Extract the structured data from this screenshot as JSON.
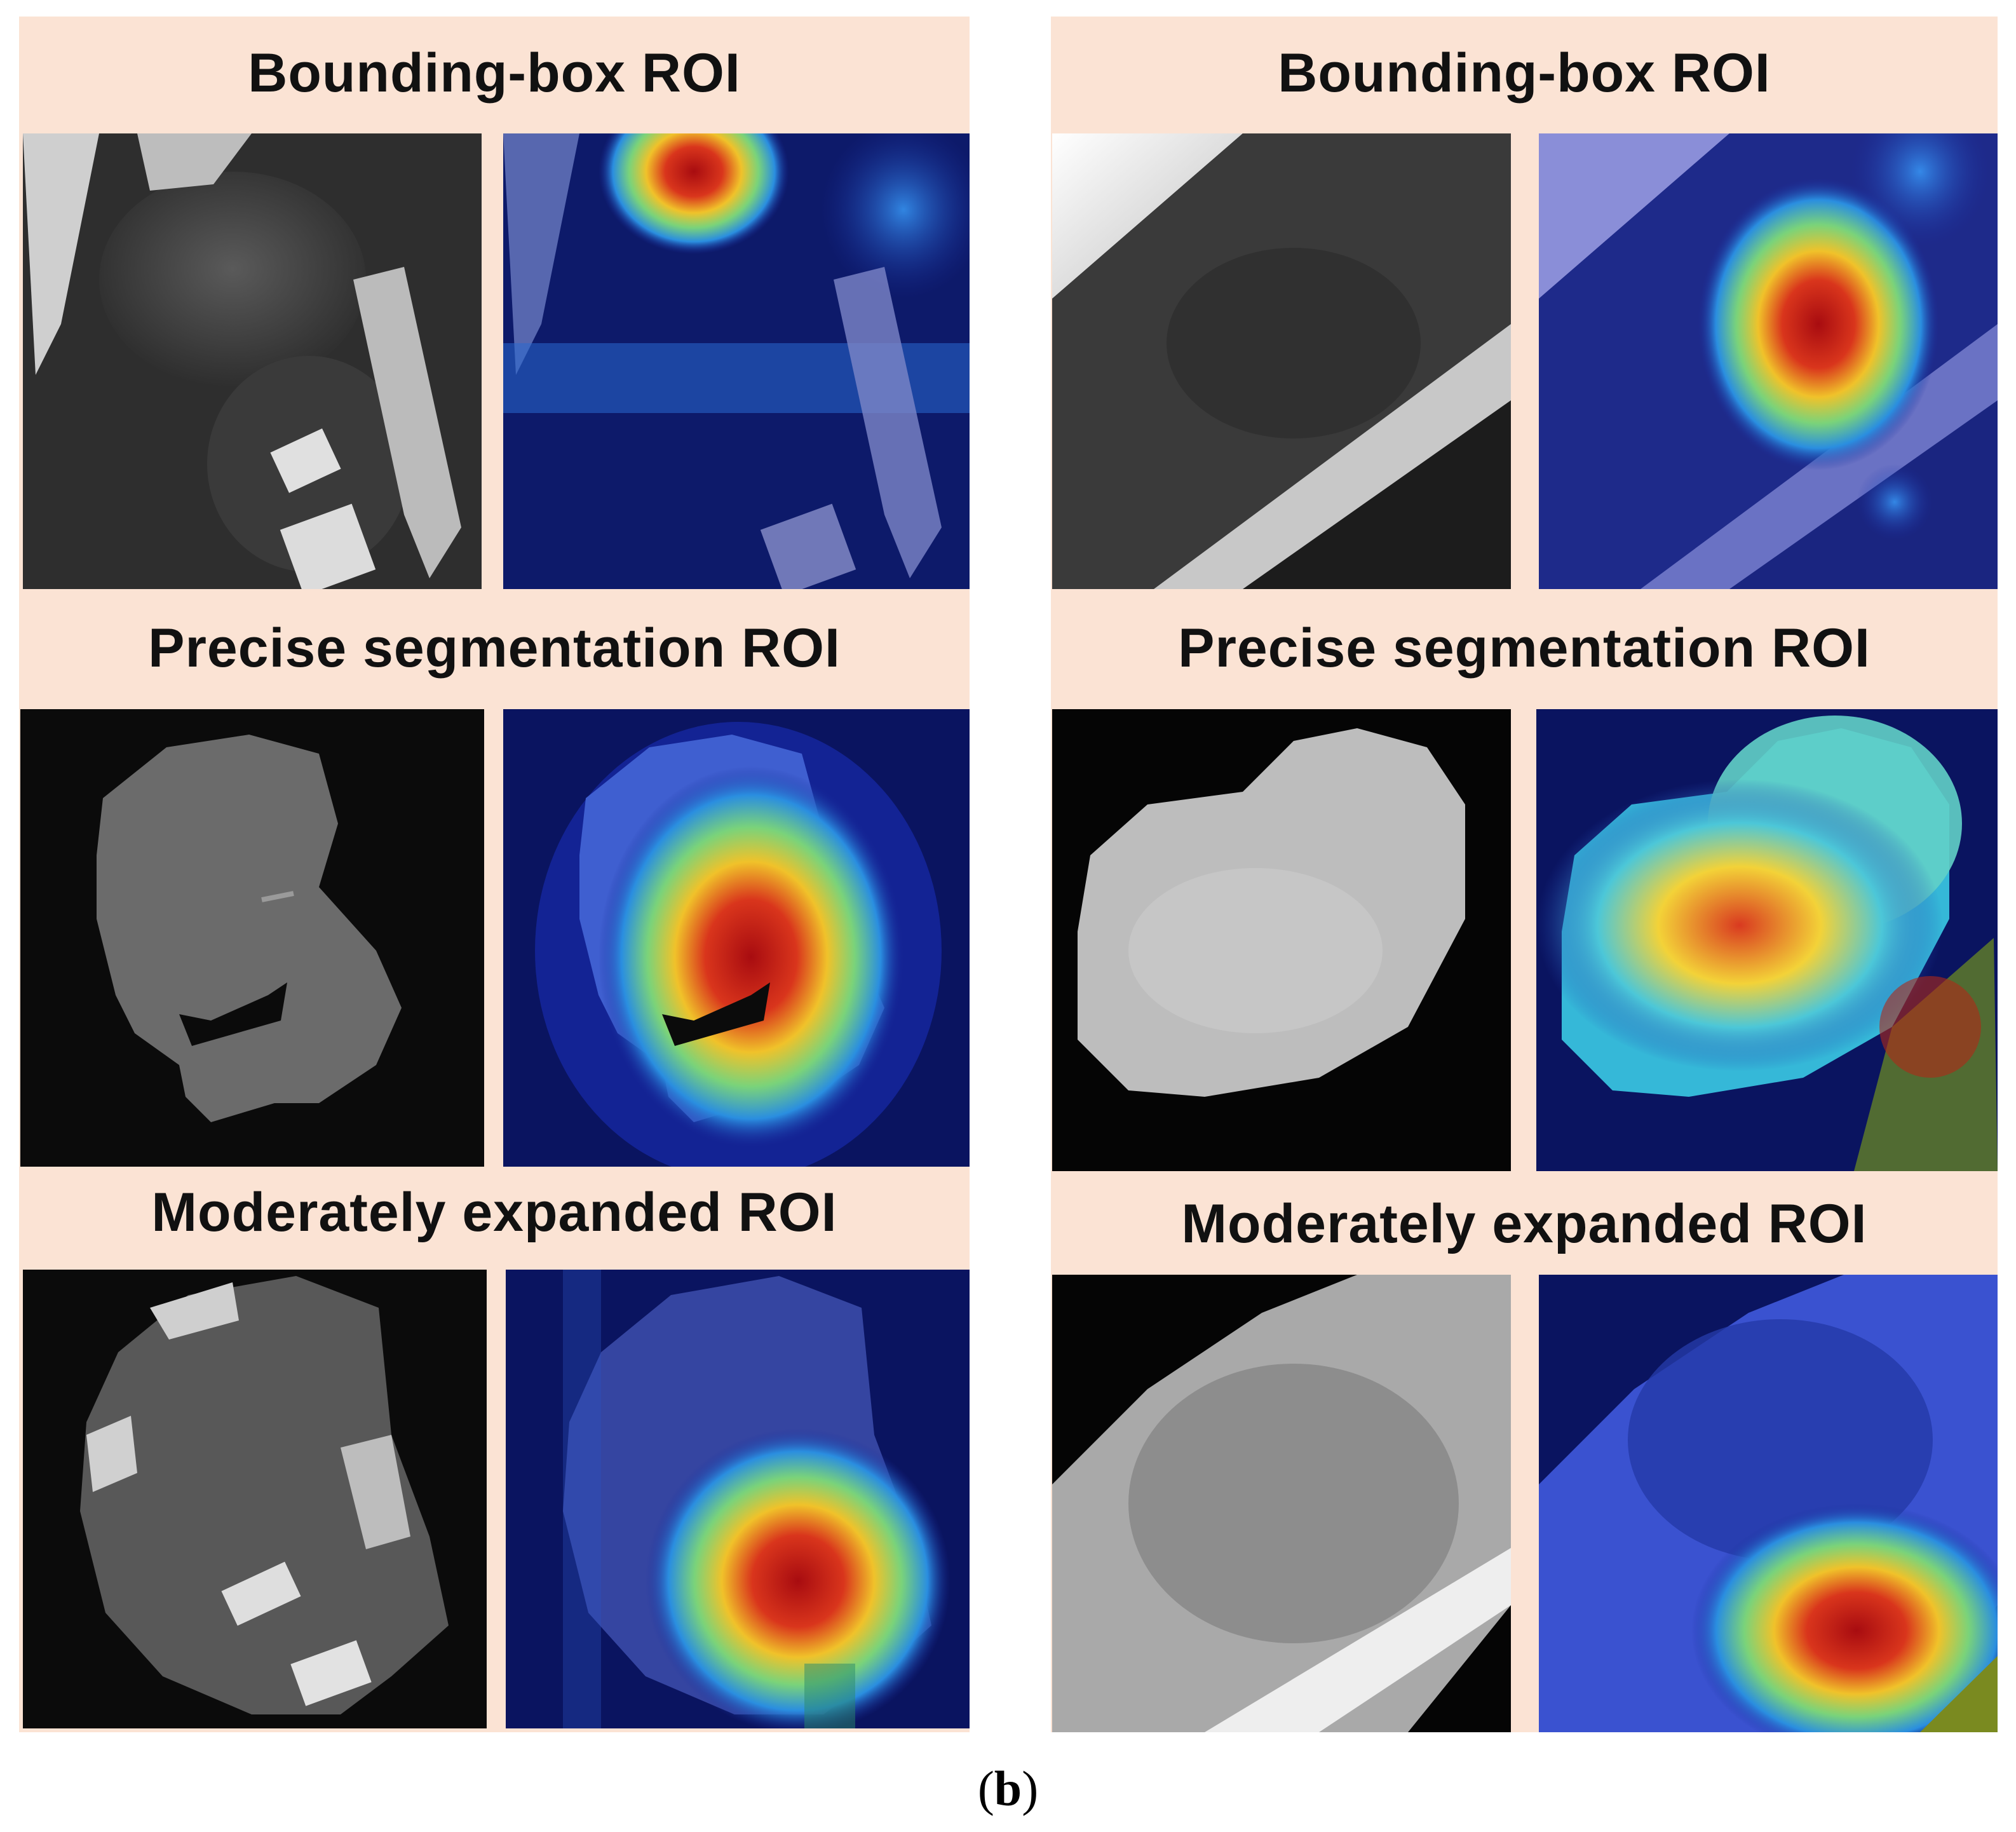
{
  "columns": [
    {
      "rows": [
        {
          "title": "Bounding-box ROI"
        },
        {
          "title": "Precise segmentation ROI"
        },
        {
          "title": "Moderately expanded ROI"
        }
      ]
    },
    {
      "rows": [
        {
          "title": "Bounding-box ROI"
        },
        {
          "title": "Precise segmentation ROI"
        },
        {
          "title": "Moderately expanded ROI"
        }
      ]
    }
  ],
  "caption": {
    "open": "(",
    "letter": "b",
    "close": ")"
  },
  "colors": {
    "header_background": "#fbe3d4",
    "background_black": "#0b0b0b",
    "heatmap_base": "#0a1460",
    "heatmap_hot": "#c01818"
  }
}
